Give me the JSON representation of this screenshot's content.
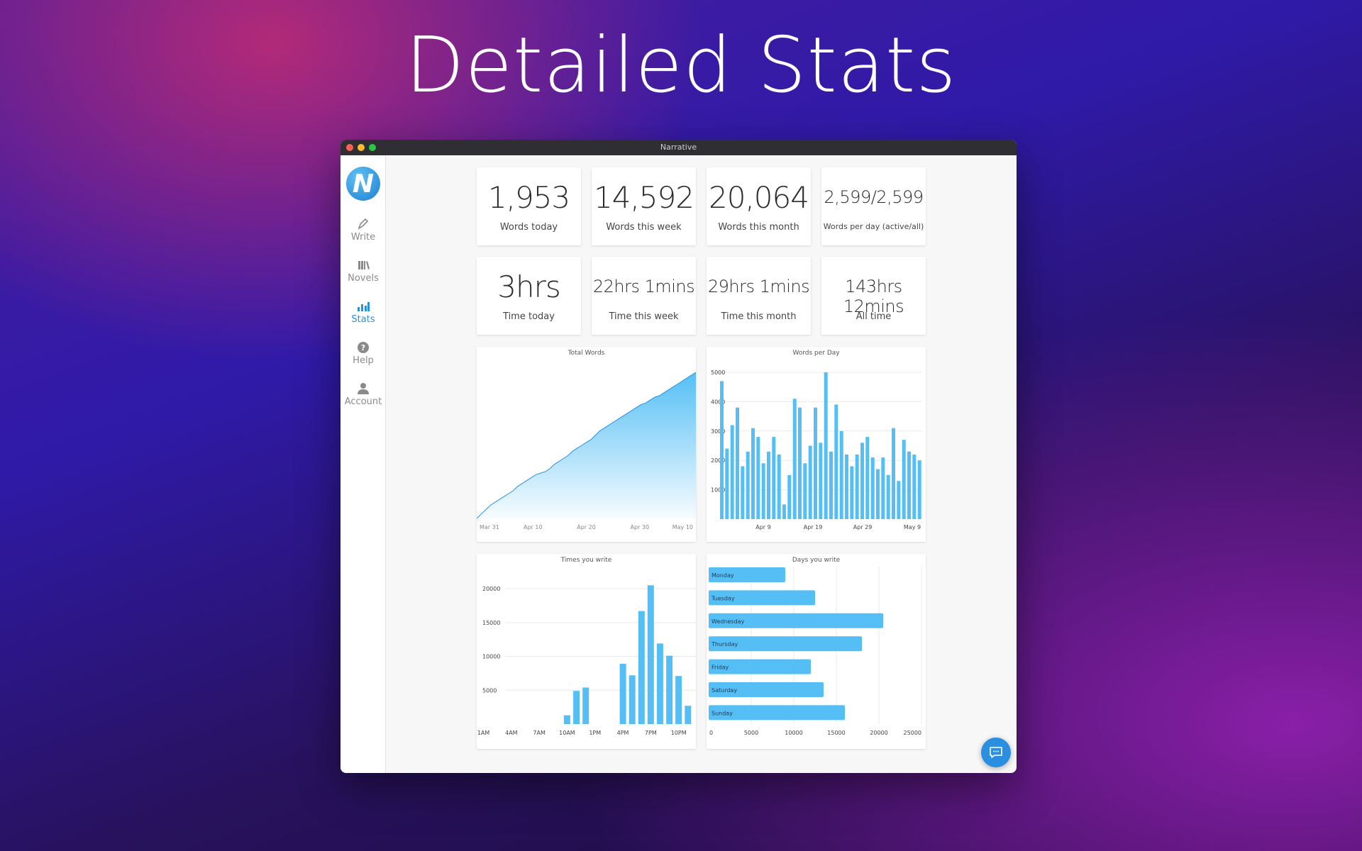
{
  "hero": {
    "title": "Detailed Stats"
  },
  "window": {
    "title": "Narrative"
  },
  "sidebar": {
    "logo": "N",
    "items": [
      {
        "label": "Write",
        "icon": "pen-icon"
      },
      {
        "label": "Novels",
        "icon": "books-icon"
      },
      {
        "label": "Stats",
        "icon": "bar-chart-icon",
        "active": true
      },
      {
        "label": "Help",
        "icon": "help-icon"
      },
      {
        "label": "Account",
        "icon": "person-icon"
      }
    ]
  },
  "stats": {
    "words_today": {
      "value": "1,953",
      "label": "Words today"
    },
    "words_week": {
      "value": "14,592",
      "label": "Words this week"
    },
    "words_month": {
      "value": "20,064",
      "label": "Words this month"
    },
    "words_per_day": {
      "value": "2,599/2,599",
      "label": "Words per day (active/all)"
    },
    "time_today": {
      "value": "3hrs",
      "label": "Time today"
    },
    "time_week": {
      "value": "22hrs 1mins",
      "label": "Time this week"
    },
    "time_month": {
      "value": "29hrs 1mins",
      "label": "Time this month"
    },
    "time_all": {
      "value": "143hrs 12mins",
      "label": "All time"
    }
  },
  "colors": {
    "accent": "#2a8fe0",
    "bar": "#55bff5"
  },
  "chart_data": [
    {
      "type": "area",
      "title": "Total Words",
      "x_ticks": [
        "Mar 31",
        "Apr 10",
        "Apr 20",
        "Apr 30",
        "May 10"
      ],
      "values": [
        0,
        3,
        6,
        9,
        11,
        13,
        15,
        17,
        19,
        22,
        24,
        26,
        28,
        30,
        31,
        32,
        34,
        37,
        39,
        41,
        43,
        46,
        48,
        50,
        52,
        54,
        57,
        60,
        62,
        64,
        66,
        68,
        70,
        72,
        74,
        76,
        78,
        79,
        81,
        83,
        84,
        86,
        88,
        90,
        92,
        94,
        96,
        98,
        100
      ],
      "grid": false
    },
    {
      "type": "bar",
      "title": "Words per Day",
      "y_ticks": [
        "1000",
        "2000",
        "3000",
        "4000",
        "5000"
      ],
      "x_ticks": [
        "Apr 9",
        "Apr 19",
        "Apr 29",
        "May 9"
      ],
      "ylim": [
        0,
        5000
      ],
      "values": [
        4700,
        2400,
        3200,
        3800,
        1800,
        2300,
        3100,
        2800,
        1900,
        2300,
        2800,
        2200,
        500,
        1500,
        4100,
        3800,
        1900,
        2500,
        3800,
        2600,
        5000,
        2300,
        3900,
        3000,
        2200,
        1800,
        2200,
        2600,
        2800,
        2100,
        1700,
        2100,
        1500,
        3100,
        1300,
        2700,
        2300,
        2200,
        2000
      ],
      "grid": true
    },
    {
      "type": "bar",
      "title": "Times you write",
      "categories": [
        "1AM",
        "2AM",
        "3AM",
        "4AM",
        "5AM",
        "6AM",
        "7AM",
        "8AM",
        "9AM",
        "10AM",
        "11AM",
        "12PM",
        "1PM",
        "2PM",
        "3PM",
        "4PM",
        "5PM",
        "6PM",
        "7PM",
        "8PM",
        "9PM",
        "10PM",
        "11PM"
      ],
      "x_ticks": [
        "1AM",
        "4AM",
        "7AM",
        "10AM",
        "1PM",
        "4PM",
        "7PM",
        "10PM"
      ],
      "y_ticks": [
        "5000",
        "10000",
        "15000",
        "20000"
      ],
      "values": [
        0,
        0,
        0,
        0,
        0,
        0,
        0,
        0,
        0,
        1300,
        4900,
        5400,
        0,
        0,
        0,
        8900,
        7200,
        16700,
        20500,
        11900,
        10100,
        7100,
        2700
      ],
      "ylim": [
        0,
        22000
      ],
      "grid": true
    },
    {
      "type": "bar",
      "orientation": "horizontal",
      "title": "Days you write",
      "categories": [
        "Monday",
        "Tuesday",
        "Wednesday",
        "Thursday",
        "Friday",
        "Saturday",
        "Sunday"
      ],
      "values": [
        9000,
        12500,
        20500,
        18000,
        12000,
        13500,
        16000
      ],
      "x_ticks": [
        "0",
        "5000",
        "10000",
        "15000",
        "20000",
        "25000"
      ],
      "xlim": [
        0,
        25000
      ],
      "grid": true
    }
  ]
}
